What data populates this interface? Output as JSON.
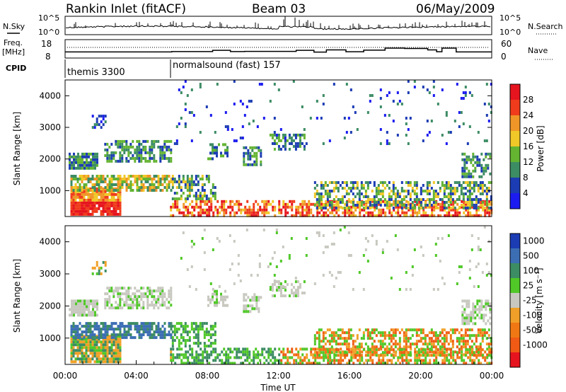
{
  "header": {
    "radar": "Rankin Inlet (fitACF)",
    "beam": "Beam 03",
    "date": "06/May/2009"
  },
  "left_labels": {
    "nsky": "N.Sky",
    "freq": "Freq.",
    "freq_unit": "[MHz]",
    "cpid": "CPID"
  },
  "right_labels": {
    "nsearch": "N.Search",
    "nave": "Nave"
  },
  "cpid_segments": [
    {
      "label": "themis 3300",
      "start_hour": 0
    },
    {
      "label": "normalsound (fast) 157",
      "start_hour": 6
    }
  ],
  "chart_data": [
    {
      "type": "line",
      "panel": "noise",
      "left_axis": {
        "ticks": [
          "10^5",
          "10^0"
        ],
        "scale": "log"
      },
      "right_axis": {
        "ticks": [
          "10^5",
          "10^0"
        ],
        "scale": "log"
      },
      "series": [
        {
          "name": "N.Sky"
        },
        {
          "name": "N.Search"
        }
      ],
      "xlim": [
        0,
        24
      ]
    },
    {
      "type": "line",
      "panel": "frequency",
      "left_axis": {
        "ticks": [
          18,
          8
        ],
        "ylim": [
          8,
          18
        ]
      },
      "right_axis": {
        "ticks": [
          60,
          0
        ],
        "ylim": [
          0,
          60
        ]
      },
      "series": [
        {
          "name": "Freq.",
          "x": [
            0,
            6,
            8.3,
            9.3,
            10.1,
            13.0,
            14.0,
            14.7,
            15.8,
            16.8,
            18.0,
            19.1,
            20.4,
            20.9,
            21.2,
            22.0,
            24
          ],
          "y": [
            11.3,
            11.5,
            12.2,
            11.5,
            11.6,
            12.2,
            11.2,
            12.4,
            11.4,
            12.3,
            13.4,
            13.2,
            12.4,
            11.4,
            13.4,
            11.3,
            11.3
          ]
        }
      ],
      "xlim": [
        0,
        24
      ]
    },
    {
      "type": "heatmap",
      "panel": "power",
      "ylabel": "Slant Range [km]",
      "yticks": [
        1000,
        2000,
        3000,
        4000
      ],
      "ylim": [
        180,
        4500
      ],
      "xlim": [
        0,
        24
      ],
      "colorbar": {
        "label": "Power [dB]",
        "ticks": [
          4,
          8,
          12,
          16,
          20,
          24,
          28
        ],
        "colors": [
          "#1c1cf0",
          "#1c3cb4",
          "#3c8c64",
          "#64b432",
          "#f0c828",
          "#f09628",
          "#f03c1c",
          "#e6141e"
        ]
      }
    },
    {
      "type": "heatmap",
      "panel": "velocity",
      "ylabel": "Slant Range [km]",
      "yticks": [
        1000,
        2000,
        3000,
        4000
      ],
      "ylim": [
        180,
        4500
      ],
      "xlim": [
        0,
        24
      ],
      "xlabel": "Time UT",
      "xticks": [
        "00:00",
        "04:00",
        "08:00",
        "12:00",
        "16:00",
        "20:00",
        "00:00"
      ],
      "colorbar": {
        "label": "Velocity [m s⁻¹]",
        "ticks": [
          "1000",
          "500",
          "100",
          "25",
          "-25",
          "-100",
          "-500",
          "-1000"
        ],
        "colors": [
          "#1c3cb4",
          "#3c6eb4",
          "#3c8c64",
          "#50c828",
          "#c8c8c0",
          "#f0a028",
          "#f07814",
          "#f05a14",
          "#e6141e"
        ]
      }
    }
  ],
  "colors": {
    "axis": "#000000",
    "cpid_divider": "#000000"
  }
}
